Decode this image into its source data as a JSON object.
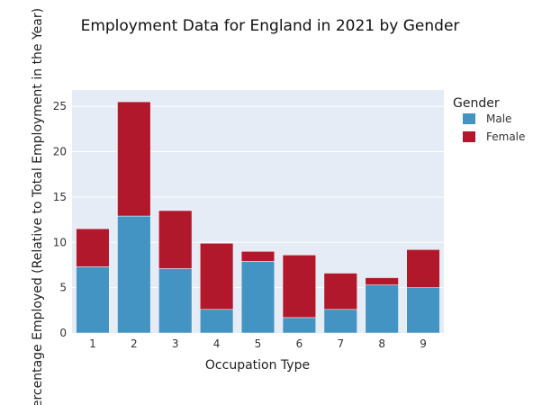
{
  "chart_data": {
    "type": "bar",
    "stacked": true,
    "title": "Employment Data for England in 2021 by Gender",
    "xlabel": "Occupation Type",
    "ylabel": "Percentage Employed (Relative to Total Employment in the Year)",
    "categories": [
      "1",
      "2",
      "3",
      "4",
      "5",
      "6",
      "7",
      "8",
      "9"
    ],
    "series": [
      {
        "name": "Male",
        "color": "#4393c3",
        "values": [
          7.3,
          12.9,
          7.1,
          2.6,
          7.9,
          1.7,
          2.6,
          5.3,
          5.0
        ]
      },
      {
        "name": "Female",
        "color": "#b2182b",
        "values": [
          4.2,
          12.6,
          6.4,
          7.3,
          1.1,
          6.9,
          4.0,
          0.8,
          4.2
        ]
      }
    ],
    "ylim": [
      0,
      26.8
    ],
    "yticks": [
      0,
      5,
      10,
      15,
      20,
      25
    ],
    "grid": true,
    "legend": {
      "title": "Gender",
      "placement": "top-right"
    }
  }
}
